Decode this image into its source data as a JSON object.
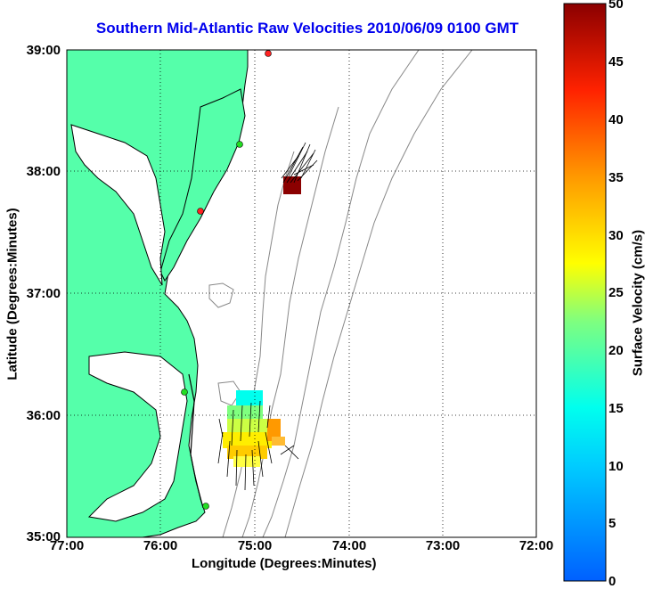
{
  "title": "Southern Mid-Atlantic Raw Velocities 2010/06/09 0100 GMT",
  "xlabel": "Longitude (Degrees:Minutes)",
  "ylabel": "Latitude (Degrees:Minutes)",
  "colorbar_label": "Surface Velocity (cm/s)",
  "colors": {
    "land": "#55ffaa",
    "coast": "#000000",
    "bathy": "#888888",
    "title": "#0000ee"
  },
  "chart_data": {
    "type": "map",
    "x_ticks": [
      "77:00",
      "76:00",
      "75:00",
      "74:00",
      "73:00",
      "72:00"
    ],
    "y_ticks": [
      "39:00",
      "38:00",
      "37:00",
      "36:00",
      "35:00"
    ],
    "xlim": [
      -77,
      -72
    ],
    "ylim": [
      35,
      39
    ],
    "grid": true,
    "colorbar": {
      "min": 0,
      "max": 50,
      "ticks": [
        50,
        45,
        40,
        35,
        30,
        25,
        20,
        15,
        10,
        5,
        0
      ]
    },
    "stations": [
      {
        "lon": -74.85,
        "lat": 38.97,
        "color": "#ff2222"
      },
      {
        "lon": -75.11,
        "lat": 38.23,
        "color": "#22dd22"
      },
      {
        "lon": -75.52,
        "lat": 37.67,
        "color": "#ff2222"
      },
      {
        "lon": -75.7,
        "lat": 36.18,
        "color": "#22dd22"
      },
      {
        "lon": -75.5,
        "lat": 35.26,
        "color": "#22dd22"
      }
    ],
    "patches": [
      {
        "region": "north",
        "lon": -74.55,
        "lat": 37.86,
        "speed": 50
      },
      {
        "region": "south",
        "lon": -75.0,
        "lat": 35.8,
        "speed_range": [
          10,
          35
        ]
      }
    ]
  }
}
